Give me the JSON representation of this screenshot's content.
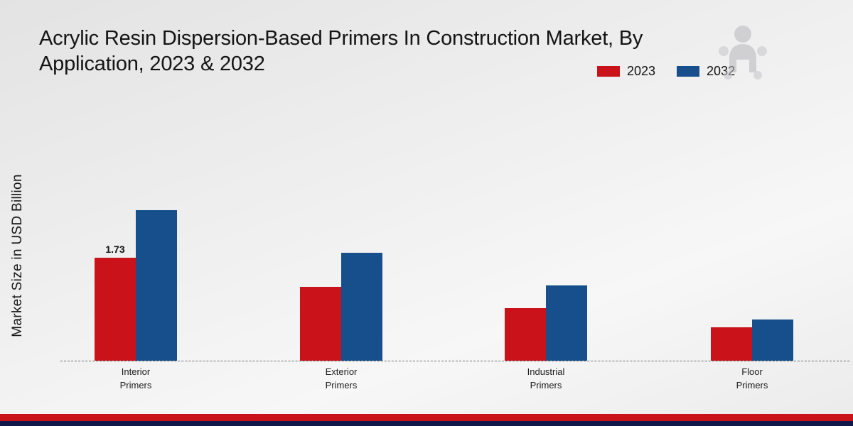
{
  "title": "Acrylic Resin Dispersion-Based Primers In Construction Market, By Application, 2023 & 2032",
  "ylabel": "Market Size in USD Billion",
  "legend": [
    {
      "label": "2023",
      "color": "#c9121a"
    },
    {
      "label": "2032",
      "color": "#174f8c"
    }
  ],
  "colors": {
    "red": "#c9121a",
    "blue": "#174f8c",
    "footer_red": "#c9121a",
    "footer_navy": "#10194a"
  },
  "chart_data": {
    "type": "bar",
    "categories": [
      "Interior Primers",
      "Exterior Primers",
      "Industrial Primers",
      "Floor Primers"
    ],
    "series": [
      {
        "name": "2023",
        "color": "#c9121a",
        "values": [
          1.73,
          1.24,
          0.88,
          0.56
        ]
      },
      {
        "name": "2032",
        "color": "#174f8c",
        "values": [
          2.52,
          1.81,
          1.26,
          0.69
        ]
      }
    ],
    "title": "Acrylic Resin Dispersion-Based Primers In Construction Market, By Application, 2023 & 2032",
    "xlabel": "",
    "ylabel": "Market Size in USD Billion",
    "ylim": [
      0,
      3
    ],
    "grid": false,
    "legend_position": "top-right",
    "annotations": [
      {
        "series": "2023",
        "category": "Interior Primers",
        "text": "1.73"
      }
    ]
  }
}
